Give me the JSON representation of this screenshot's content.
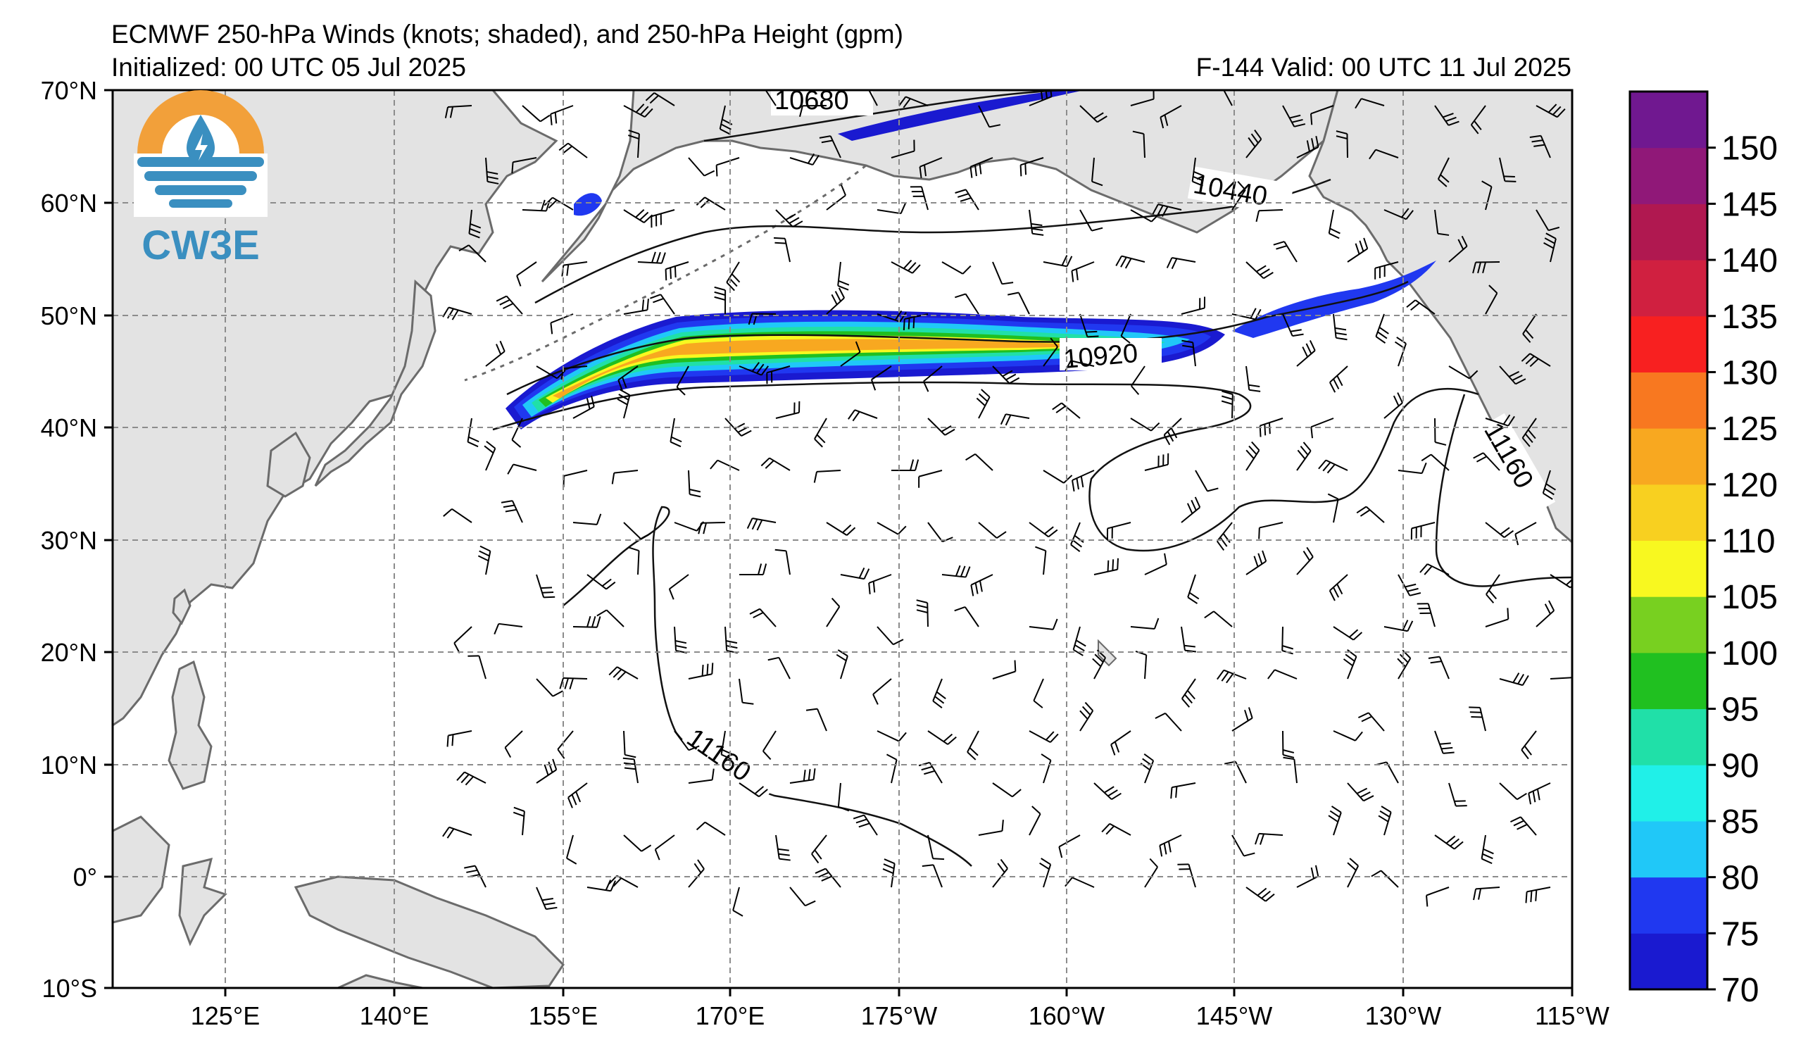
{
  "header": {
    "title": "ECMWF 250-hPa Winds (knots; shaded), and 250-hPa Height (gpm)",
    "initialized": "Initialized: 00 UTC 05 Jul 2025",
    "valid": "F-144  Valid: 00 UTC 11 Jul 2025"
  },
  "logo": {
    "text": "CW3E",
    "colors": {
      "sun": "#f2a03a",
      "water": "#3a8fc0"
    }
  },
  "axes": {
    "lat_labels": [
      "70°N",
      "60°N",
      "50°N",
      "40°N",
      "30°N",
      "20°N",
      "10°N",
      "0°",
      "10°S"
    ],
    "lon_labels": [
      "125°E",
      "140°E",
      "155°E",
      "170°E",
      "175°W",
      "160°W",
      "145°W",
      "130°W",
      "115°W"
    ]
  },
  "contour_labels": [
    "10680",
    "10440",
    "10920",
    "11160",
    "11160"
  ],
  "colorbar": {
    "ticks": [
      "70",
      "75",
      "80",
      "85",
      "90",
      "95",
      "100",
      "105",
      "110",
      "120",
      "125",
      "130",
      "135",
      "140",
      "145",
      "150"
    ],
    "colors": [
      "#1a1ad0",
      "#2038f0",
      "#20c8f8",
      "#20f0e8",
      "#20e0a8",
      "#20c020",
      "#78d020",
      "#f8f820",
      "#f8d020",
      "#f8a820",
      "#f87820",
      "#f82020",
      "#d02040",
      "#b01850",
      "#901878",
      "#701890"
    ]
  }
}
